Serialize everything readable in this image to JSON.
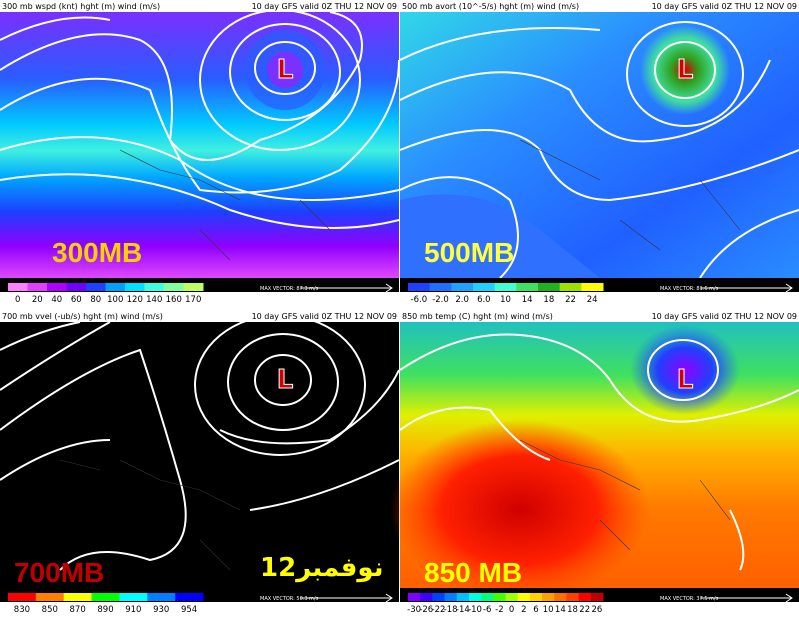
{
  "panels": [
    {
      "header_left": "300 mb wspd (knt) hght (m) wind (m/s)",
      "header_right": "10 day GFS valid 0Z THU 12 NOV 09",
      "level_label": "300MB",
      "low_symbol": "L",
      "max_vector": "MAX VECTOR: 87.3 m/s",
      "colorbar": {
        "labels": [
          "0",
          "20",
          "40",
          "60",
          "80",
          "100",
          "120",
          "140",
          "160",
          "170"
        ],
        "colors": [
          "#ff80ff",
          "#e040ff",
          "#b000ff",
          "#7000ff",
          "#2040ff",
          "#00a0ff",
          "#00e0ff",
          "#40ffe0",
          "#80ffa0",
          "#c0ff60"
        ]
      }
    },
    {
      "header_left": "500 mb avort (10^-5/s) hght (m) wind (m/s)",
      "header_right": "10 day GFS valid 0Z THU 12 NOV 09",
      "level_label": "500MB",
      "low_symbol": "L",
      "max_vector": "MAX VECTOR: 81.6 m/s",
      "colorbar": {
        "labels": [
          "-6.0",
          "-2.0",
          "2.0",
          "6.0",
          "10",
          "14",
          "18",
          "22",
          "24"
        ],
        "colors": [
          "#2040ff",
          "#2070ff",
          "#20a0ff",
          "#20d0ff",
          "#40ffd0",
          "#40e060",
          "#20b020",
          "#a0e000",
          "#ffff00"
        ]
      }
    },
    {
      "header_left": "700 mb vvel (-ub/s) hght (m) wind (m/s)",
      "header_right": "10 day GFS valid 0Z THU 12 NOV 09",
      "level_label": "700MB",
      "arabic_label": "12نوفمبر",
      "low_symbol": "L",
      "max_vector": "MAX VECTOR: 50.3 m/s",
      "colorbar": {
        "labels": [
          "830",
          "850",
          "870",
          "890",
          "910",
          "930",
          "954"
        ],
        "colors": [
          "#ff0000",
          "#ff8000",
          "#ffff00",
          "#00ff00",
          "#00ffff",
          "#0080ff",
          "#0000ff"
        ]
      }
    },
    {
      "header_left": "850 mb temp (C) hght (m) wind (m/s)",
      "header_right": "10 day GFS valid 0Z THU 12 NOV 09",
      "level_label": "850 MB",
      "low_symbol": "L",
      "max_vector": "MAX VECTOR: 37.5 m/s",
      "colorbar": {
        "labels": [
          "-30",
          "-26",
          "-22",
          "-18",
          "-14",
          "-10",
          "-6",
          "-2",
          "0",
          "2",
          "6",
          "10",
          "14",
          "18",
          "22",
          "26"
        ],
        "colors": [
          "#8000ff",
          "#4000ff",
          "#0040ff",
          "#0080ff",
          "#00c0ff",
          "#00ffe0",
          "#00ff80",
          "#40ff00",
          "#a0ff00",
          "#ffff00",
          "#ffd000",
          "#ffa000",
          "#ff7000",
          "#ff4000",
          "#ff0000",
          "#c00000"
        ]
      }
    }
  ]
}
